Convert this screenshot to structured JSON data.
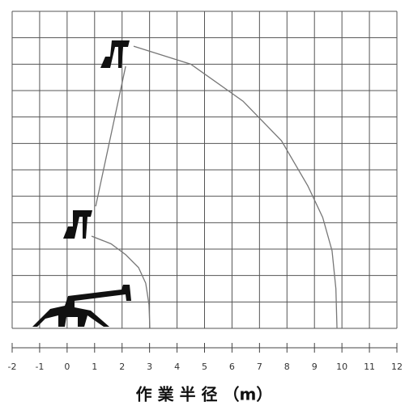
{
  "chart_data": {
    "type": "line",
    "x_label": "作 業 半 径 （m）",
    "xlim": [
      -2,
      12
    ],
    "xticks": [
      -2,
      -1,
      0,
      1,
      2,
      3,
      4,
      5,
      6,
      7,
      8,
      9,
      10,
      11,
      12
    ],
    "ylim": [
      0,
      12
    ],
    "yticks": [
      0,
      1,
      2,
      3,
      4,
      5,
      6,
      7,
      8,
      9,
      10,
      11,
      12
    ],
    "grid": true,
    "series": [
      {
        "color": "#777",
        "x": [
          2.42,
          4.5,
          6.4,
          7.8,
          8.76,
          9.3,
          9.64,
          9.78,
          9.82
        ],
        "values": [
          10.68,
          10.0,
          8.6,
          7.1,
          5.39,
          4.2,
          2.94,
          1.5,
          0
        ]
      },
      {
        "color": "#777",
        "x": [
          0.89,
          1.6,
          2.13,
          2.6,
          2.86,
          2.98,
          3.01
        ],
        "values": [
          3.49,
          3.2,
          2.79,
          2.3,
          1.71,
          0.9,
          0
        ]
      },
      {
        "color": "#777",
        "x": [
          1.04,
          2.13
        ],
        "values": [
          4.62,
          9.92
        ]
      }
    ]
  }
}
